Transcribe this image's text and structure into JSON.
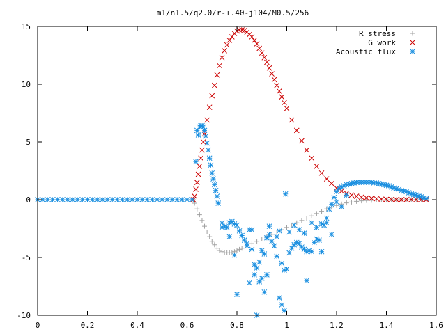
{
  "chart_data": {
    "type": "scatter",
    "title": "m1/n1.5/q2.0/r-+.40-j104/M0.5/256",
    "xlabel": "",
    "ylabel": "",
    "xlim": [
      0,
      1.6
    ],
    "ylim": [
      -10,
      15
    ],
    "x_ticks": [
      0,
      0.2,
      0.4,
      0.6,
      0.8,
      1.0,
      1.2,
      1.4,
      1.6
    ],
    "x_tick_labels": [
      "0",
      "0.2",
      "0.4",
      "0.6",
      "0.8",
      "1",
      "1.2",
      "1.4",
      "1.6"
    ],
    "y_ticks": [
      -10,
      -5,
      0,
      5,
      10,
      15
    ],
    "y_tick_labels": [
      "-10",
      "-5",
      "0",
      "5",
      "10",
      "15"
    ],
    "grid": false,
    "legend_position": "top-right",
    "series": [
      {
        "name": "R stress",
        "marker": "plus",
        "color": "#a0a0a0",
        "points": [
          [
            0.625,
            0
          ],
          [
            0.63,
            -0.3
          ],
          [
            0.64,
            -0.8
          ],
          [
            0.65,
            -1.3
          ],
          [
            0.66,
            -1.8
          ],
          [
            0.67,
            -2.3
          ],
          [
            0.68,
            -2.8
          ],
          [
            0.69,
            -3.2
          ],
          [
            0.7,
            -3.6
          ],
          [
            0.71,
            -3.9
          ],
          [
            0.72,
            -4.2
          ],
          [
            0.73,
            -4.4
          ],
          [
            0.74,
            -4.5
          ],
          [
            0.75,
            -4.6
          ],
          [
            0.76,
            -4.6
          ],
          [
            0.77,
            -4.6
          ],
          [
            0.78,
            -4.6
          ],
          [
            0.79,
            -4.5
          ],
          [
            0.8,
            -4.4
          ],
          [
            0.81,
            -4.3
          ],
          [
            0.82,
            -4.2
          ],
          [
            0.84,
            -4.0
          ],
          [
            0.86,
            -3.8
          ],
          [
            0.88,
            -3.6
          ],
          [
            0.9,
            -3.4
          ],
          [
            0.92,
            -3.2
          ],
          [
            0.94,
            -3.0
          ],
          [
            0.96,
            -2.8
          ],
          [
            0.98,
            -2.6
          ],
          [
            1.0,
            -2.4
          ],
          [
            1.02,
            -2.2
          ],
          [
            1.04,
            -2.0
          ],
          [
            1.06,
            -1.8
          ],
          [
            1.08,
            -1.6
          ],
          [
            1.1,
            -1.4
          ],
          [
            1.12,
            -1.2
          ],
          [
            1.14,
            -1.0
          ],
          [
            1.16,
            -0.8
          ],
          [
            1.18,
            -0.65
          ],
          [
            1.2,
            -0.5
          ],
          [
            1.22,
            -0.38
          ],
          [
            1.24,
            -0.28
          ],
          [
            1.26,
            -0.2
          ],
          [
            1.28,
            -0.14
          ],
          [
            1.3,
            -0.1
          ],
          [
            1.32,
            -0.07
          ],
          [
            1.34,
            -0.05
          ],
          [
            1.36,
            -0.03
          ],
          [
            1.38,
            -0.02
          ],
          [
            1.4,
            -0.01
          ],
          [
            1.42,
            0
          ],
          [
            1.44,
            0
          ],
          [
            1.46,
            0
          ],
          [
            1.48,
            0
          ],
          [
            1.5,
            0
          ],
          [
            1.52,
            0
          ],
          [
            1.54,
            0
          ],
          [
            1.56,
            0
          ]
        ]
      },
      {
        "name": "G work",
        "marker": "cross",
        "color": "#cc0000",
        "points": [
          [
            0.625,
            0
          ],
          [
            0.63,
            0.3
          ],
          [
            0.635,
            0.9
          ],
          [
            0.64,
            1.5
          ],
          [
            0.645,
            2.2
          ],
          [
            0.65,
            2.9
          ],
          [
            0.655,
            3.6
          ],
          [
            0.66,
            4.3
          ],
          [
            0.665,
            5.0
          ],
          [
            0.67,
            5.7
          ],
          [
            0.68,
            6.9
          ],
          [
            0.69,
            8.0
          ],
          [
            0.7,
            9.0
          ],
          [
            0.71,
            9.9
          ],
          [
            0.72,
            10.8
          ],
          [
            0.73,
            11.6
          ],
          [
            0.74,
            12.3
          ],
          [
            0.75,
            12.9
          ],
          [
            0.76,
            13.4
          ],
          [
            0.77,
            13.8
          ],
          [
            0.78,
            14.1
          ],
          [
            0.79,
            14.4
          ],
          [
            0.8,
            14.6
          ],
          [
            0.81,
            14.7
          ],
          [
            0.82,
            14.7
          ],
          [
            0.83,
            14.65
          ],
          [
            0.84,
            14.5
          ],
          [
            0.85,
            14.3
          ],
          [
            0.86,
            14.1
          ],
          [
            0.87,
            13.8
          ],
          [
            0.88,
            13.5
          ],
          [
            0.89,
            13.1
          ],
          [
            0.9,
            12.7
          ],
          [
            0.91,
            12.3
          ],
          [
            0.92,
            11.9
          ],
          [
            0.93,
            11.4
          ],
          [
            0.94,
            10.9
          ],
          [
            0.95,
            10.4
          ],
          [
            0.96,
            9.9
          ],
          [
            0.97,
            9.4
          ],
          [
            0.98,
            8.9
          ],
          [
            0.99,
            8.4
          ],
          [
            1.0,
            7.9
          ],
          [
            1.02,
            6.9
          ],
          [
            1.04,
            6.0
          ],
          [
            1.06,
            5.1
          ],
          [
            1.08,
            4.3
          ],
          [
            1.1,
            3.6
          ],
          [
            1.12,
            2.9
          ],
          [
            1.14,
            2.3
          ],
          [
            1.16,
            1.8
          ],
          [
            1.18,
            1.4
          ],
          [
            1.2,
            1.0
          ],
          [
            1.22,
            0.75
          ],
          [
            1.24,
            0.55
          ],
          [
            1.26,
            0.4
          ],
          [
            1.28,
            0.3
          ],
          [
            1.3,
            0.22
          ],
          [
            1.32,
            0.16
          ],
          [
            1.34,
            0.12
          ],
          [
            1.36,
            0.08
          ],
          [
            1.38,
            0.05
          ],
          [
            1.4,
            0.03
          ],
          [
            1.42,
            0.02
          ],
          [
            1.44,
            0.01
          ],
          [
            1.46,
            0
          ],
          [
            1.48,
            0
          ],
          [
            1.5,
            0
          ],
          [
            1.52,
            0
          ],
          [
            1.54,
            0
          ],
          [
            1.56,
            0
          ]
        ]
      },
      {
        "name": "Acoustic flux",
        "marker": "star",
        "color": "#1a8fe0",
        "points": [
          [
            0.0,
            0
          ],
          [
            0.02,
            0
          ],
          [
            0.04,
            0
          ],
          [
            0.06,
            0
          ],
          [
            0.08,
            0
          ],
          [
            0.1,
            0
          ],
          [
            0.12,
            0
          ],
          [
            0.14,
            0
          ],
          [
            0.16,
            0
          ],
          [
            0.18,
            0
          ],
          [
            0.2,
            0
          ],
          [
            0.22,
            0
          ],
          [
            0.24,
            0
          ],
          [
            0.26,
            0
          ],
          [
            0.28,
            0
          ],
          [
            0.3,
            0
          ],
          [
            0.32,
            0
          ],
          [
            0.34,
            0
          ],
          [
            0.36,
            0
          ],
          [
            0.38,
            0
          ],
          [
            0.4,
            0
          ],
          [
            0.42,
            0
          ],
          [
            0.44,
            0
          ],
          [
            0.46,
            0
          ],
          [
            0.48,
            0
          ],
          [
            0.5,
            0
          ],
          [
            0.52,
            0
          ],
          [
            0.54,
            0
          ],
          [
            0.56,
            0
          ],
          [
            0.58,
            0
          ],
          [
            0.6,
            0
          ],
          [
            0.62,
            0
          ],
          [
            0.635,
            3.3
          ],
          [
            0.64,
            6.0
          ],
          [
            0.645,
            5.6
          ],
          [
            0.65,
            6.3
          ],
          [
            0.655,
            6.4
          ],
          [
            0.66,
            6.4
          ],
          [
            0.665,
            6.3
          ],
          [
            0.67,
            6.0
          ],
          [
            0.675,
            5.5
          ],
          [
            0.68,
            4.9
          ],
          [
            0.685,
            4.3
          ],
          [
            0.69,
            3.6
          ],
          [
            0.695,
            3.0
          ],
          [
            0.7,
            2.3
          ],
          [
            0.705,
            1.8
          ],
          [
            0.71,
            1.3
          ],
          [
            0.715,
            0.8
          ],
          [
            0.72,
            0.3
          ],
          [
            0.725,
            -0.3
          ],
          [
            0.74,
            -2.0
          ],
          [
            0.75,
            -2.3
          ],
          [
            0.76,
            -2.4
          ],
          [
            0.77,
            -2.0
          ],
          [
            0.78,
            -1.9
          ],
          [
            0.79,
            -2.1
          ],
          [
            0.8,
            -2.2
          ],
          [
            0.81,
            -2.7
          ],
          [
            0.82,
            -3.1
          ],
          [
            0.83,
            -3.5
          ],
          [
            0.84,
            -3.8
          ],
          [
            0.85,
            -2.6
          ],
          [
            0.86,
            -2.6
          ],
          [
            0.87,
            -5.6
          ],
          [
            0.88,
            -5.9
          ],
          [
            0.89,
            -5.4
          ],
          [
            0.9,
            -4.4
          ],
          [
            0.91,
            -4.7
          ],
          [
            0.92,
            -3.3
          ],
          [
            0.93,
            -2.3
          ],
          [
            0.94,
            -3.6
          ],
          [
            0.95,
            -4.0
          ],
          [
            0.96,
            -3.2
          ],
          [
            0.97,
            -2.7
          ],
          [
            0.98,
            -5.5
          ],
          [
            0.99,
            -6.1
          ],
          [
            1.0,
            -6.0
          ],
          [
            1.01,
            -4.6
          ],
          [
            1.02,
            -4.2
          ],
          [
            1.03,
            -3.9
          ],
          [
            1.04,
            -3.7
          ],
          [
            1.05,
            -3.8
          ],
          [
            1.06,
            -4.1
          ],
          [
            1.07,
            -4.3
          ],
          [
            1.08,
            -4.5
          ],
          [
            1.09,
            -4.4
          ],
          [
            1.1,
            -4.5
          ],
          [
            1.11,
            -3.7
          ],
          [
            1.12,
            -3.4
          ],
          [
            1.13,
            -3.5
          ],
          [
            1.14,
            -2.1
          ],
          [
            1.15,
            -2.2
          ],
          [
            1.16,
            -1.6
          ],
          [
            1.17,
            -0.8
          ],
          [
            1.18,
            -0.4
          ],
          [
            1.19,
            0.2
          ],
          [
            1.2,
            0.7
          ],
          [
            1.21,
            1.0
          ],
          [
            1.22,
            1.1
          ],
          [
            1.23,
            1.2
          ],
          [
            1.24,
            1.3
          ],
          [
            1.25,
            1.35
          ],
          [
            1.26,
            1.4
          ],
          [
            1.27,
            1.45
          ],
          [
            1.28,
            1.5
          ],
          [
            1.29,
            1.5
          ],
          [
            1.3,
            1.5
          ],
          [
            1.31,
            1.5
          ],
          [
            1.32,
            1.5
          ],
          [
            1.33,
            1.5
          ],
          [
            1.34,
            1.5
          ],
          [
            1.35,
            1.45
          ],
          [
            1.36,
            1.45
          ],
          [
            1.37,
            1.4
          ],
          [
            1.38,
            1.35
          ],
          [
            1.39,
            1.3
          ],
          [
            1.4,
            1.25
          ],
          [
            1.41,
            1.2
          ],
          [
            1.42,
            1.1
          ],
          [
            1.43,
            1.0
          ],
          [
            1.44,
            0.95
          ],
          [
            1.45,
            0.9
          ],
          [
            1.46,
            0.8
          ],
          [
            1.47,
            0.75
          ],
          [
            1.48,
            0.7
          ],
          [
            1.49,
            0.6
          ],
          [
            1.5,
            0.5
          ],
          [
            1.51,
            0.45
          ],
          [
            1.52,
            0.4
          ],
          [
            1.53,
            0.3
          ],
          [
            1.54,
            0.25
          ],
          [
            1.55,
            0.15
          ],
          [
            1.56,
            0.1
          ],
          [
            0.84,
            -4.0
          ],
          [
            0.85,
            -7.2
          ],
          [
            0.86,
            -4.3
          ],
          [
            0.87,
            -6.5
          ],
          [
            0.88,
            -10.0
          ],
          [
            0.89,
            -7.1
          ],
          [
            0.9,
            -6.8
          ],
          [
            0.91,
            -8.0
          ],
          [
            0.92,
            -6.5
          ],
          [
            0.93,
            -3.0
          ],
          [
            0.96,
            -4.9
          ],
          [
            0.97,
            -8.5
          ],
          [
            0.98,
            -9.1
          ],
          [
            0.99,
            -9.6
          ],
          [
            0.995,
            0.5
          ],
          [
            1.01,
            -2.8
          ],
          [
            1.03,
            -2.2
          ],
          [
            1.05,
            -2.6
          ],
          [
            1.07,
            -2.9
          ],
          [
            1.08,
            -7.0
          ],
          [
            1.1,
            -2.0
          ],
          [
            1.12,
            -2.4
          ],
          [
            1.14,
            -4.5
          ],
          [
            1.16,
            -2.0
          ],
          [
            1.18,
            -3.0
          ],
          [
            1.2,
            -0.2
          ],
          [
            1.22,
            -0.6
          ],
          [
            1.24,
            0.4
          ],
          [
            0.8,
            -8.2
          ],
          [
            0.74,
            -2.4
          ],
          [
            0.77,
            -3.2
          ],
          [
            0.79,
            -4.8
          ]
        ]
      }
    ]
  }
}
